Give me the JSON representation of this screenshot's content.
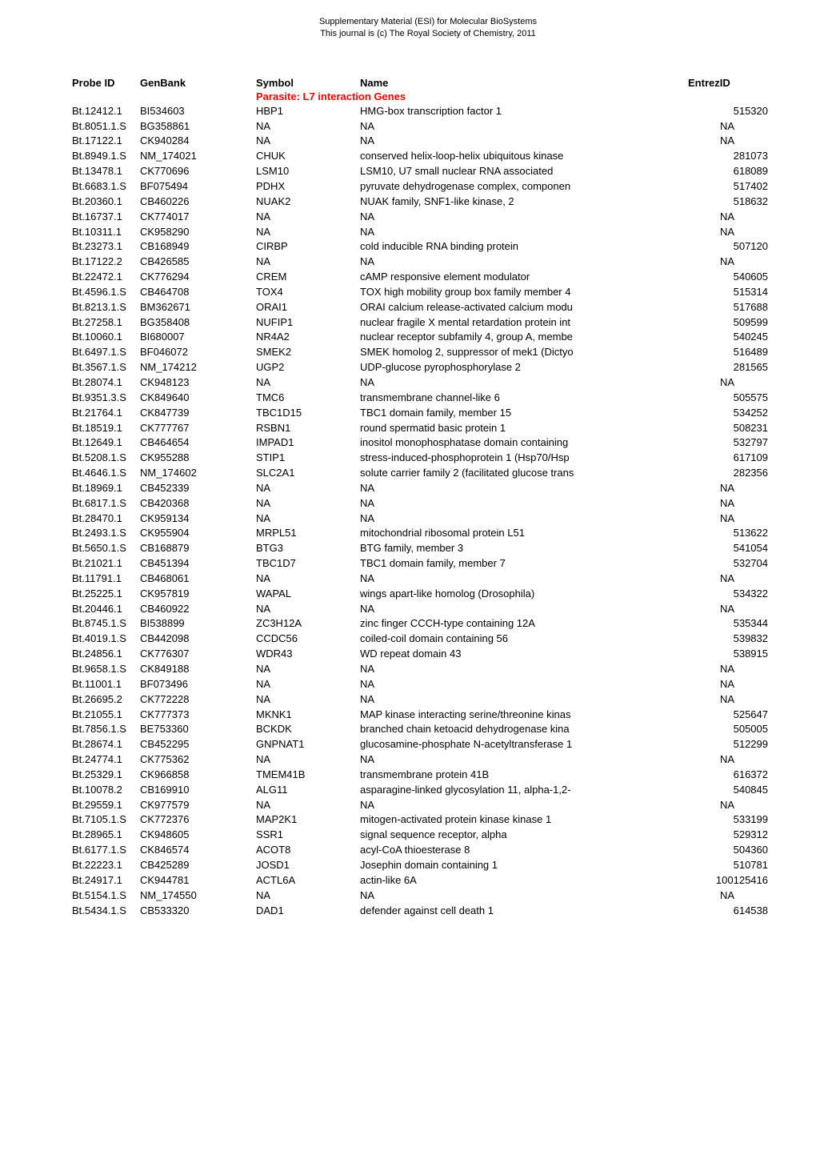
{
  "supplementary": {
    "line1": "Supplementary Material (ESI) for Molecular BioSystems",
    "line2": "This journal is (c) The Royal Society of Chemistry, 2011"
  },
  "headers": {
    "probe_id": "Probe ID",
    "genbank": "GenBank",
    "symbol": "Symbol",
    "name": "Name",
    "entrez": "EntrezID"
  },
  "section_title": "Parasite: L7 interaction Genes",
  "rows": [
    {
      "probe": "Bt.12412.1",
      "genbank": "BI534603",
      "symbol": "HBP1",
      "name": "HMG-box transcription factor 1",
      "entrez": "515320"
    },
    {
      "probe": "Bt.8051.1.S",
      "genbank": "BG358861",
      "symbol": "NA",
      "name": "NA",
      "entrez": "NA"
    },
    {
      "probe": "Bt.17122.1",
      "genbank": "CK940284",
      "symbol": "NA",
      "name": "NA",
      "entrez": "NA"
    },
    {
      "probe": "Bt.8949.1.S",
      "genbank": "NM_174021",
      "symbol": "CHUK",
      "name": "conserved helix-loop-helix ubiquitous kinase",
      "entrez": "281073"
    },
    {
      "probe": "Bt.13478.1",
      "genbank": "CK770696",
      "symbol": "LSM10",
      "name": "LSM10, U7 small nuclear RNA associated",
      "entrez": "618089"
    },
    {
      "probe": "Bt.6683.1.S",
      "genbank": "BF075494",
      "symbol": "PDHX",
      "name": "pyruvate dehydrogenase complex, componen",
      "entrez": "517402"
    },
    {
      "probe": "Bt.20360.1",
      "genbank": "CB460226",
      "symbol": "NUAK2",
      "name": "NUAK family, SNF1-like kinase, 2",
      "entrez": "518632"
    },
    {
      "probe": "Bt.16737.1",
      "genbank": "CK774017",
      "symbol": "NA",
      "name": "NA",
      "entrez": "NA"
    },
    {
      "probe": "Bt.10311.1",
      "genbank": "CK958290",
      "symbol": "NA",
      "name": "NA",
      "entrez": "NA"
    },
    {
      "probe": "Bt.23273.1",
      "genbank": "CB168949",
      "symbol": "CIRBP",
      "name": "cold inducible RNA binding protein",
      "entrez": "507120"
    },
    {
      "probe": "Bt.17122.2",
      "genbank": "CB426585",
      "symbol": "NA",
      "name": "NA",
      "entrez": "NA"
    },
    {
      "probe": "Bt.22472.1",
      "genbank": "CK776294",
      "symbol": "CREM",
      "name": "cAMP responsive element modulator",
      "entrez": "540605"
    },
    {
      "probe": "Bt.4596.1.S",
      "genbank": "CB464708",
      "symbol": "TOX4",
      "name": "TOX high mobility group box family member 4",
      "entrez": "515314"
    },
    {
      "probe": "Bt.8213.1.S",
      "genbank": "BM362671",
      "symbol": "ORAI1",
      "name": "ORAI calcium release-activated calcium modu",
      "entrez": "517688"
    },
    {
      "probe": "Bt.27258.1",
      "genbank": "BG358408",
      "symbol": "NUFIP1",
      "name": "nuclear fragile X mental retardation protein int",
      "entrez": "509599"
    },
    {
      "probe": "Bt.10060.1",
      "genbank": "BI680007",
      "symbol": "NR4A2",
      "name": "nuclear receptor subfamily 4, group A, membe",
      "entrez": "540245"
    },
    {
      "probe": "Bt.6497.1.S",
      "genbank": "BF046072",
      "symbol": "SMEK2",
      "name": "SMEK homolog 2, suppressor of mek1 (Dictyo",
      "entrez": "516489"
    },
    {
      "probe": "Bt.3567.1.S",
      "genbank": "NM_174212",
      "symbol": "UGP2",
      "name": "UDP-glucose pyrophosphorylase 2",
      "entrez": "281565"
    },
    {
      "probe": "Bt.28074.1",
      "genbank": "CK948123",
      "symbol": "NA",
      "name": "NA",
      "entrez": "NA"
    },
    {
      "probe": "Bt.9351.3.S",
      "genbank": "CK849640",
      "symbol": "TMC6",
      "name": "transmembrane channel-like 6",
      "entrez": "505575"
    },
    {
      "probe": "Bt.21764.1",
      "genbank": "CK847739",
      "symbol": "TBC1D15",
      "name": "TBC1 domain family, member 15",
      "entrez": "534252"
    },
    {
      "probe": "Bt.18519.1",
      "genbank": "CK777767",
      "symbol": "RSBN1",
      "name": "round spermatid basic protein 1",
      "entrez": "508231"
    },
    {
      "probe": "Bt.12649.1",
      "genbank": "CB464654",
      "symbol": "IMPAD1",
      "name": "inositol monophosphatase domain containing",
      "entrez": "532797"
    },
    {
      "probe": "Bt.5208.1.S",
      "genbank": "CK955288",
      "symbol": "STIP1",
      "name": "stress-induced-phosphoprotein 1 (Hsp70/Hsp",
      "entrez": "617109"
    },
    {
      "probe": "Bt.4646.1.S",
      "genbank": "NM_174602",
      "symbol": "SLC2A1",
      "name": "solute carrier family 2 (facilitated glucose trans",
      "entrez": "282356"
    },
    {
      "probe": "Bt.18969.1",
      "genbank": "CB452339",
      "symbol": "NA",
      "name": "NA",
      "entrez": "NA"
    },
    {
      "probe": "Bt.6817.1.S",
      "genbank": "CB420368",
      "symbol": "NA",
      "name": "NA",
      "entrez": "NA"
    },
    {
      "probe": "Bt.28470.1",
      "genbank": "CK959134",
      "symbol": "NA",
      "name": "NA",
      "entrez": "NA"
    },
    {
      "probe": "Bt.2493.1.S",
      "genbank": "CK955904",
      "symbol": "MRPL51",
      "name": "mitochondrial ribosomal protein L51",
      "entrez": "513622"
    },
    {
      "probe": "Bt.5650.1.S",
      "genbank": "CB168879",
      "symbol": "BTG3",
      "name": "BTG family, member 3",
      "entrez": "541054"
    },
    {
      "probe": "Bt.21021.1",
      "genbank": "CB451394",
      "symbol": "TBC1D7",
      "name": "TBC1 domain family, member 7",
      "entrez": "532704"
    },
    {
      "probe": "Bt.11791.1",
      "genbank": "CB468061",
      "symbol": "NA",
      "name": "NA",
      "entrez": "NA"
    },
    {
      "probe": "Bt.25225.1",
      "genbank": "CK957819",
      "symbol": "WAPAL",
      "name": "wings apart-like homolog (Drosophila)",
      "entrez": "534322"
    },
    {
      "probe": "Bt.20446.1",
      "genbank": "CB460922",
      "symbol": "NA",
      "name": "NA",
      "entrez": "NA"
    },
    {
      "probe": "Bt.8745.1.S",
      "genbank": "BI538899",
      "symbol": "ZC3H12A",
      "name": "zinc finger CCCH-type containing 12A",
      "entrez": "535344"
    },
    {
      "probe": "Bt.4019.1.S",
      "genbank": "CB442098",
      "symbol": "CCDC56",
      "name": "coiled-coil domain containing 56",
      "entrez": "539832"
    },
    {
      "probe": "Bt.24856.1",
      "genbank": "CK776307",
      "symbol": "WDR43",
      "name": "WD repeat domain 43",
      "entrez": "538915"
    },
    {
      "probe": "Bt.9658.1.S",
      "genbank": "CK849188",
      "symbol": "NA",
      "name": "NA",
      "entrez": "NA"
    },
    {
      "probe": "Bt.11001.1",
      "genbank": "BF073496",
      "symbol": "NA",
      "name": "NA",
      "entrez": "NA"
    },
    {
      "probe": "Bt.26695.2",
      "genbank": "CK772228",
      "symbol": "NA",
      "name": "NA",
      "entrez": "NA"
    },
    {
      "probe": "Bt.21055.1",
      "genbank": "CK777373",
      "symbol": "MKNK1",
      "name": "MAP kinase interacting serine/threonine kinas",
      "entrez": "525647"
    },
    {
      "probe": "Bt.7856.1.S",
      "genbank": "BE753360",
      "symbol": "BCKDK",
      "name": "branched chain ketoacid dehydrogenase kina",
      "entrez": "505005"
    },
    {
      "probe": "Bt.28674.1",
      "genbank": "CB452295",
      "symbol": "GNPNAT1",
      "name": "glucosamine-phosphate N-acetyltransferase 1",
      "entrez": "512299"
    },
    {
      "probe": "Bt.24774.1",
      "genbank": "CK775362",
      "symbol": "NA",
      "name": "NA",
      "entrez": "NA"
    },
    {
      "probe": "Bt.25329.1",
      "genbank": "CK966858",
      "symbol": "TMEM41B",
      "name": "transmembrane protein 41B",
      "entrez": "616372"
    },
    {
      "probe": "Bt.10078.2",
      "genbank": "CB169910",
      "symbol": "ALG11",
      "name": "asparagine-linked glycosylation 11, alpha-1,2-",
      "entrez": "540845"
    },
    {
      "probe": "Bt.29559.1",
      "genbank": "CK977579",
      "symbol": "NA",
      "name": "NA",
      "entrez": "NA"
    },
    {
      "probe": "Bt.7105.1.S",
      "genbank": "CK772376",
      "symbol": "MAP2K1",
      "name": "mitogen-activated protein kinase kinase 1",
      "entrez": "533199"
    },
    {
      "probe": "Bt.28965.1",
      "genbank": "CK948605",
      "symbol": "SSR1",
      "name": "signal sequence receptor, alpha",
      "entrez": "529312"
    },
    {
      "probe": "Bt.6177.1.S",
      "genbank": "CK846574",
      "symbol": "ACOT8",
      "name": "acyl-CoA thioesterase 8",
      "entrez": "504360"
    },
    {
      "probe": "Bt.22223.1",
      "genbank": "CB425289",
      "symbol": "JOSD1",
      "name": "Josephin domain containing 1",
      "entrez": "510781"
    },
    {
      "probe": "Bt.24917.1",
      "genbank": "CK944781",
      "symbol": "ACTL6A",
      "name": "actin-like 6A",
      "entrez": "100125416"
    },
    {
      "probe": "Bt.5154.1.S",
      "genbank": "NM_174550",
      "symbol": "NA",
      "name": "NA",
      "entrez": "NA"
    },
    {
      "probe": "Bt.5434.1.S",
      "genbank": "CB533320",
      "symbol": "DAD1",
      "name": "defender against cell death 1",
      "entrez": "614538"
    }
  ]
}
